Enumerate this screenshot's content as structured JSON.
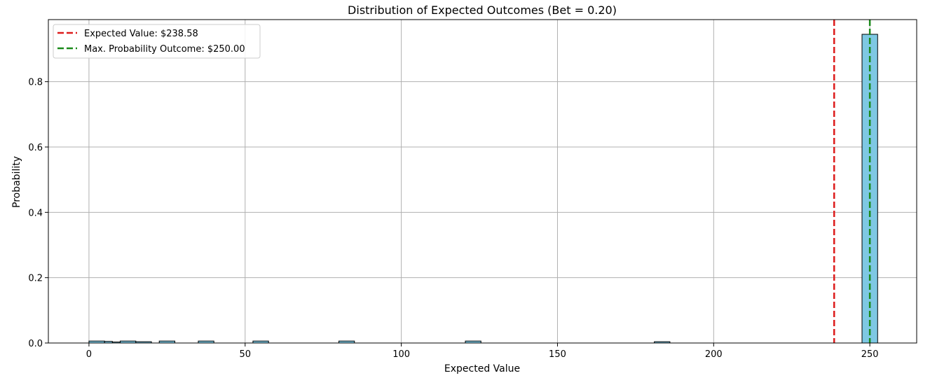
{
  "chart_data": {
    "type": "bar",
    "title": "Distribution of Expected Outcomes (Bet = 0.20)",
    "xlabel": "Expected Value",
    "ylabel": "Probability",
    "xlim": [
      -13,
      265
    ],
    "ylim": [
      0,
      0.99
    ],
    "xticks": [
      0,
      50,
      100,
      150,
      200,
      250
    ],
    "yticks": [
      0.0,
      0.2,
      0.4,
      0.6,
      0.8
    ],
    "xtick_labels": [
      "0",
      "50",
      "100",
      "150",
      "200",
      "250"
    ],
    "ytick_labels": [
      "0.0",
      "0.2",
      "0.4",
      "0.6",
      "0.8"
    ],
    "grid": true,
    "legend_position": "top-left",
    "bar_color": "#7ec8e3",
    "bar_edge_color": "#000000",
    "bins": [
      {
        "x0": 0.0,
        "x1": 5.0,
        "value": 0.006
      },
      {
        "x0": 5.0,
        "x1": 7.5,
        "value": 0.005
      },
      {
        "x0": 7.5,
        "x1": 10.0,
        "value": 0.003
      },
      {
        "x0": 10.0,
        "x1": 15.0,
        "value": 0.006
      },
      {
        "x0": 15.0,
        "x1": 20.0,
        "value": 0.004
      },
      {
        "x0": 22.5,
        "x1": 27.5,
        "value": 0.006
      },
      {
        "x0": 35.0,
        "x1": 40.0,
        "value": 0.006
      },
      {
        "x0": 52.5,
        "x1": 57.5,
        "value": 0.006
      },
      {
        "x0": 80.0,
        "x1": 85.0,
        "value": 0.006
      },
      {
        "x0": 120.5,
        "x1": 125.5,
        "value": 0.006
      },
      {
        "x0": 181.0,
        "x1": 186.0,
        "value": 0.004
      },
      {
        "x0": 247.5,
        "x1": 252.5,
        "value": 0.945
      }
    ],
    "reference_lines": [
      {
        "name": "Expected Value: $238.58",
        "x": 238.58,
        "color": "#dd1c1c",
        "style": "dashed"
      },
      {
        "name": "Max. Probability Outcome: $250.00",
        "x": 250.0,
        "color": "#1a8a1a",
        "style": "dashed"
      }
    ]
  }
}
